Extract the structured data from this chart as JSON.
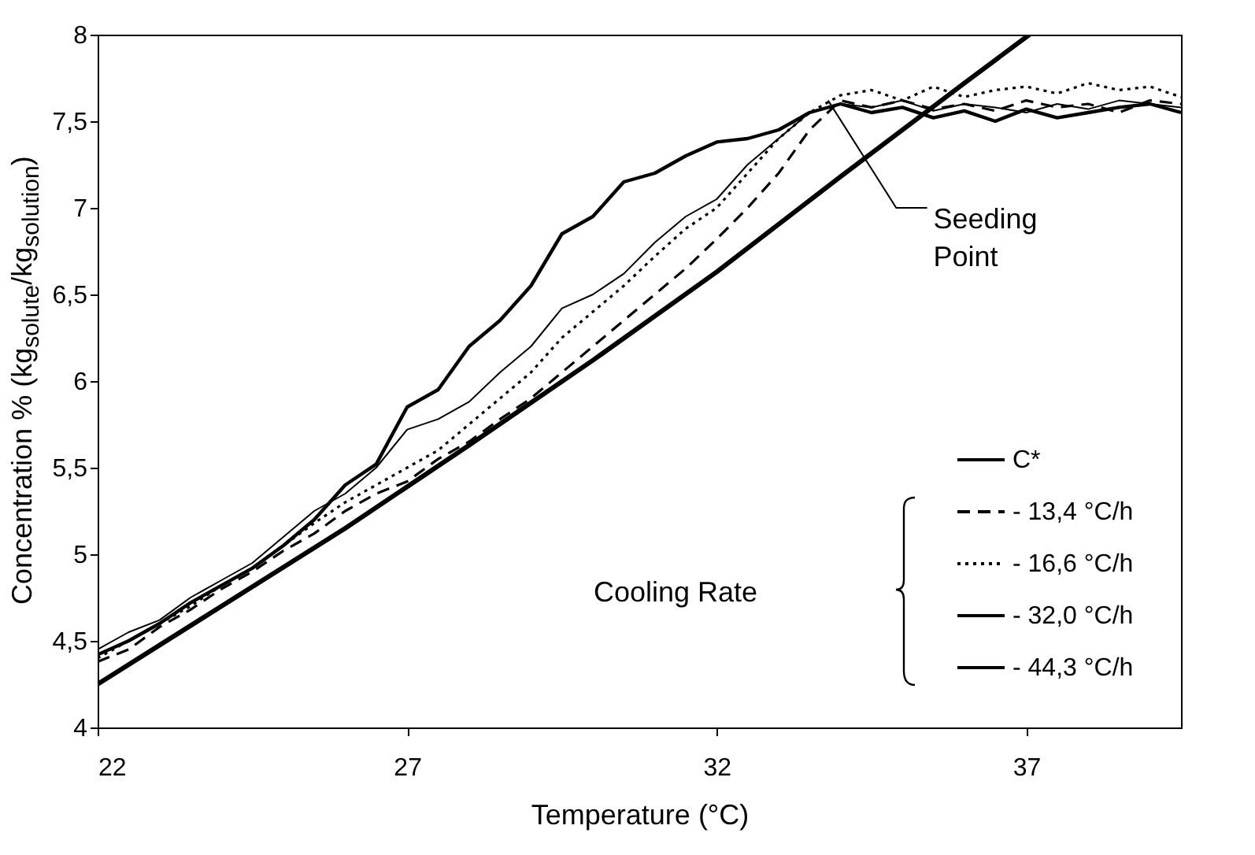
{
  "chart_data": {
    "type": "line",
    "xlabel": "Temperature (°C)",
    "ylabel": "Concentration % (kg$_{solute}$/kg$_{solution}$)",
    "xlim": [
      22,
      39.5
    ],
    "xticks": [
      22,
      27,
      32,
      37
    ],
    "ylim": [
      4,
      8
    ],
    "yticks": [
      4,
      {
        "value": 4.5,
        "label": "4,5"
      },
      5,
      {
        "value": 5.5,
        "label": "5,5"
      },
      6,
      {
        "value": 6.5,
        "label": "6,5"
      },
      7,
      {
        "value": 7.5,
        "label": "7,5"
      },
      8
    ],
    "legend": "bottom right",
    "series": [
      {
        "name": "C*",
        "color": "#000000",
        "line_style": "solid",
        "x": [
          22,
          24,
          26,
          28,
          30,
          32,
          34,
          36,
          37.05
        ],
        "values": [
          4.25,
          4.7,
          5.15,
          5.63,
          6.12,
          6.63,
          7.18,
          7.72,
          8
        ]
      },
      {
        "name": "- 13,4 °C/h",
        "color": "#000000",
        "line_style": "dashed",
        "x": [
          22,
          22.5,
          23,
          23.5,
          24,
          24.5,
          25,
          25.5,
          26,
          26.5,
          27,
          27.5,
          28,
          28.5,
          29,
          29.5,
          30,
          30.5,
          31,
          31.5,
          32,
          32.5,
          33,
          33.5,
          34,
          34.5,
          35,
          35.5,
          36,
          36.5,
          37,
          37.5,
          38,
          38.5,
          39,
          39.5
        ],
        "values": [
          4.38,
          4.45,
          4.58,
          4.68,
          4.8,
          4.9,
          5.02,
          5.12,
          5.25,
          5.35,
          5.42,
          5.55,
          5.65,
          5.78,
          5.9,
          6.05,
          6.2,
          6.35,
          6.5,
          6.65,
          6.82,
          7.0,
          7.2,
          7.45,
          7.62,
          7.58,
          7.62,
          7.57,
          7.6,
          7.56,
          7.62,
          7.58,
          7.6,
          7.55,
          7.62,
          7.6
        ]
      },
      {
        "name": "- 16,6 °C/h",
        "color": "#000000",
        "line_style": "dotted",
        "x": [
          22,
          22.5,
          23,
          23.5,
          24,
          24.5,
          25,
          25.5,
          26,
          26.5,
          27,
          27.5,
          28,
          28.5,
          29,
          29.5,
          30,
          30.5,
          31,
          31.5,
          32,
          32.5,
          33,
          33.5,
          34,
          34.5,
          35,
          35.5,
          36,
          36.5,
          37,
          37.5,
          38,
          38.5,
          39,
          39.5
        ],
        "values": [
          4.4,
          4.5,
          4.6,
          4.7,
          4.82,
          4.92,
          5.05,
          5.18,
          5.3,
          5.4,
          5.5,
          5.6,
          5.75,
          5.9,
          6.05,
          6.25,
          6.4,
          6.55,
          6.72,
          6.88,
          7.0,
          7.2,
          7.4,
          7.55,
          7.65,
          7.68,
          7.62,
          7.7,
          7.64,
          7.68,
          7.7,
          7.66,
          7.72,
          7.68,
          7.7,
          7.64
        ]
      },
      {
        "name": "- 32,0 °C/h",
        "color": "#000000",
        "line_style": "solid",
        "x": [
          22,
          22.5,
          23,
          23.5,
          24,
          24.5,
          25,
          25.5,
          26,
          26.5,
          27,
          27.5,
          28,
          28.5,
          29,
          29.5,
          30,
          30.5,
          31,
          31.5,
          32,
          32.5,
          33,
          33.5,
          34,
          34.5,
          35,
          35.5,
          36,
          36.5,
          37,
          37.5,
          38,
          38.5,
          39,
          39.5
        ],
        "values": [
          4.45,
          4.55,
          4.62,
          4.75,
          4.85,
          4.95,
          5.1,
          5.25,
          5.35,
          5.5,
          5.72,
          5.78,
          5.88,
          6.05,
          6.2,
          6.42,
          6.5,
          6.62,
          6.8,
          6.95,
          7.05,
          7.25,
          7.4,
          7.55,
          7.6,
          7.58,
          7.62,
          7.56,
          7.6,
          7.58,
          7.55,
          7.6,
          7.57,
          7.62,
          7.6,
          7.58
        ]
      },
      {
        "name": "- 44,3 °C/h",
        "color": "#000000",
        "line_style": "solid",
        "x": [
          22,
          22.5,
          23,
          23.5,
          24,
          24.5,
          25,
          25.5,
          26,
          26.5,
          27,
          27.5,
          28,
          28.5,
          29,
          29.5,
          30,
          30.5,
          31,
          31.5,
          32,
          32.5,
          33,
          33.5,
          34,
          34.5,
          35,
          35.5,
          36,
          36.5,
          37,
          37.5,
          38,
          38.5,
          39,
          39.5
        ],
        "values": [
          4.42,
          4.5,
          4.6,
          4.72,
          4.82,
          4.92,
          5.05,
          5.2,
          5.4,
          5.52,
          5.85,
          5.95,
          6.2,
          6.35,
          6.55,
          6.85,
          6.95,
          7.15,
          7.2,
          7.3,
          7.38,
          7.4,
          7.45,
          7.55,
          7.6,
          7.55,
          7.58,
          7.52,
          7.56,
          7.5,
          7.57,
          7.52,
          7.55,
          7.58,
          7.6,
          7.55
        ]
      }
    ],
    "annotations": [
      {
        "text": "Seeding Point",
        "x": 33.8,
        "y": 7.62
      },
      "Cooling Rate"
    ]
  }
}
